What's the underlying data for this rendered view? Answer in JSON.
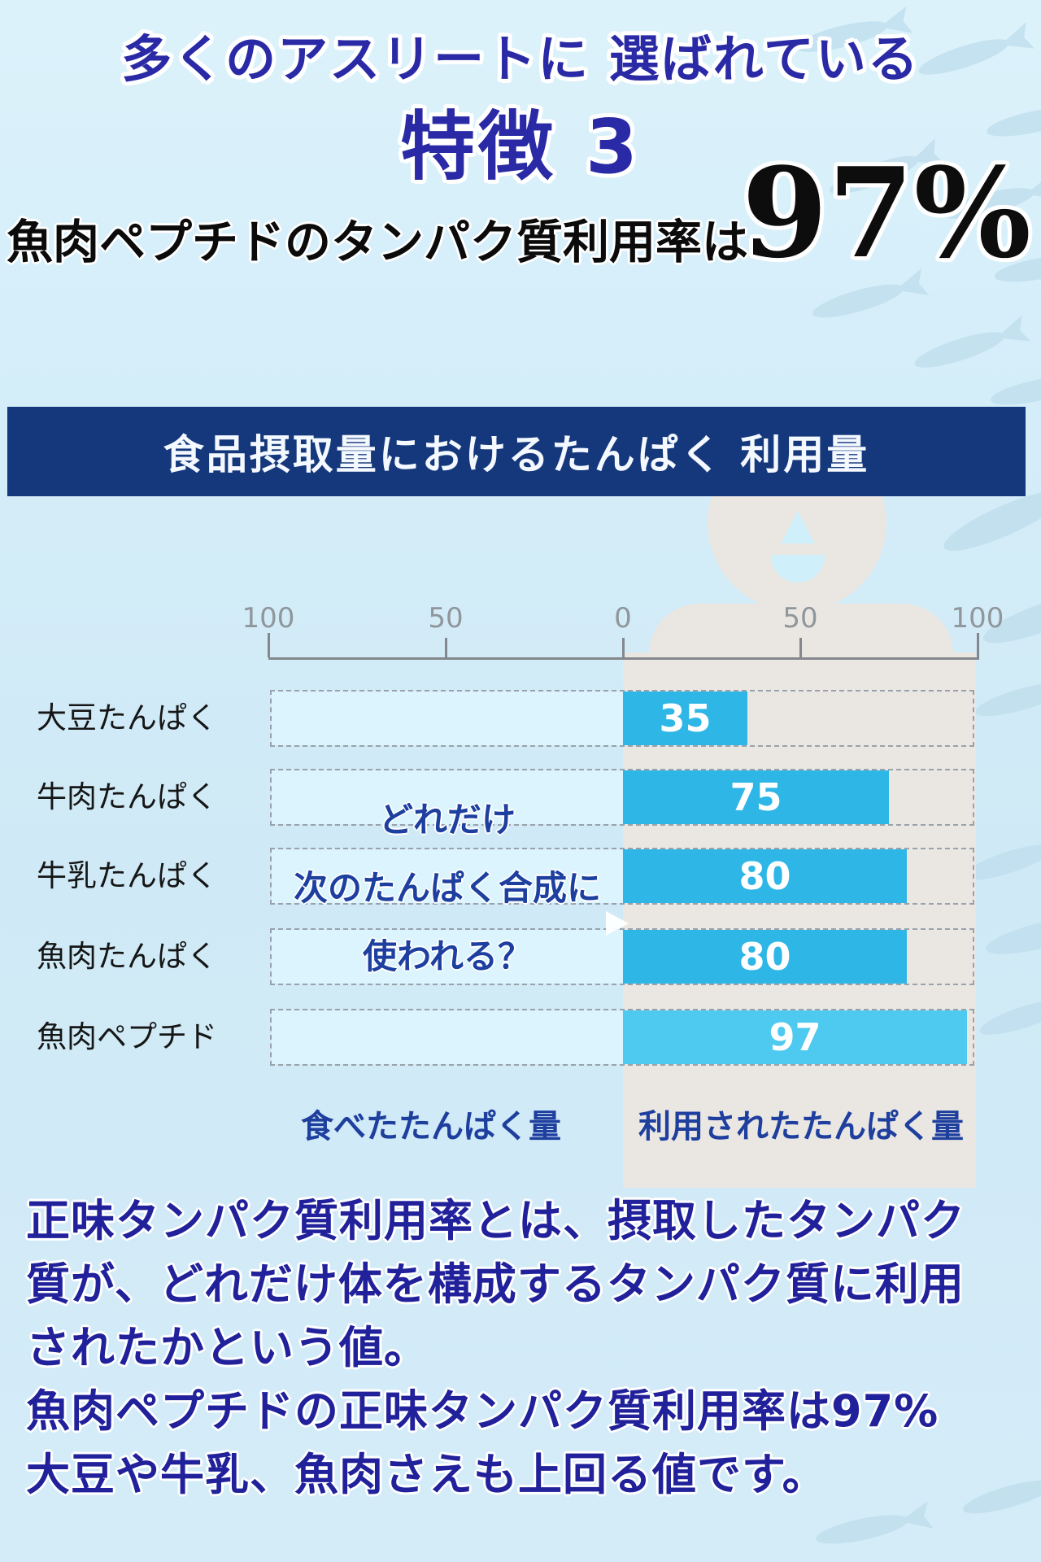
{
  "page": {
    "header_line1": "多くのアスリートに 選ばれている",
    "header_line2": "特徴 3",
    "subtitle_text": "魚肉ペプチドのタンパク質利用率は",
    "subtitle_value": "97%"
  },
  "chart_data": {
    "type": "bar",
    "orientation": "horizontal",
    "title": "食品摂取量におけるたんぱく 利用量",
    "categories": [
      "大豆たんぱく",
      "牛肉たんぱく",
      "牛乳たんぱく",
      "魚肉たんぱく",
      "魚肉ペプチド"
    ],
    "values": [
      35,
      75,
      80,
      80,
      97
    ],
    "axis_ticks": [
      "100",
      "50",
      "0",
      "50",
      "100"
    ],
    "axis_range": [
      -100,
      100
    ],
    "axis_zero_mirrored": true,
    "overlay_lines": [
      "どれだけ",
      "次のたんぱく合成に",
      "使われる？"
    ],
    "xlabel_left": "食べたたんぱく量",
    "xlabel_right": "利用されたたんぱく量",
    "bar_color": "#2eb6e6",
    "highlight_bar_color": "#4ec9ef",
    "highlight_index": 4,
    "grid": false,
    "legend": false
  },
  "footer": {
    "lines": [
      "正味タンパク質利用率とは、摂取したタンパク",
      "質が、どれだけ体を構成するタンパク質に利用",
      "されたかという値。",
      "魚肉ペプチドの正味タンパク質利用率は97%",
      "大豆や牛乳、魚肉さえも上回る値です。"
    ]
  },
  "colors": {
    "title_band_bg": "#15387c",
    "title_band_text": "#f4f8ff",
    "heading_navy": "#2a2aa6",
    "body_navy": "#21219b",
    "label_navy": "#1e3f9e",
    "black_text": "#0d0d0d",
    "silhouette_grey": "#eae7e3",
    "background_blue": "#d5eef9",
    "fish_blue": "#bedcec"
  },
  "icons": {
    "person": "person-silhouette",
    "fish": "fish-silhouette"
  }
}
